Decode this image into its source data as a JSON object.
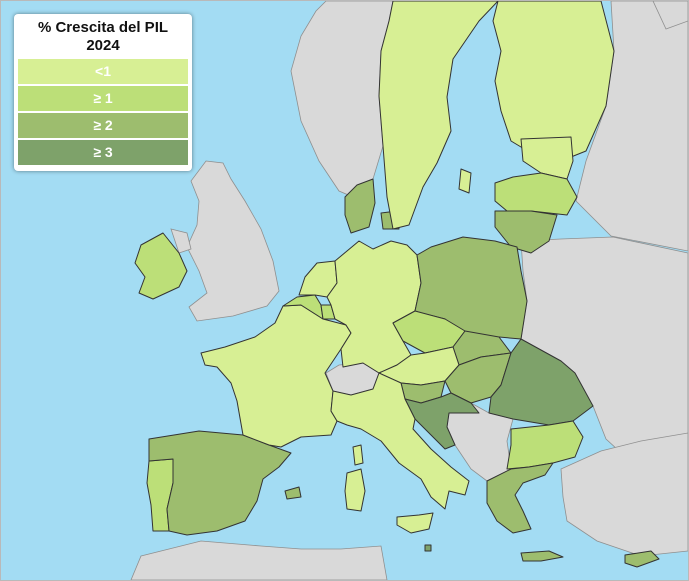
{
  "legend": {
    "title_line1": "% Crescita del PIL",
    "title_line2": "2024",
    "items": [
      {
        "label": "<1",
        "color": "#d7ef94"
      },
      {
        "label": "≥ 1",
        "color": "#bcdf78"
      },
      {
        "label": "≥ 2",
        "color": "#9dbd6e"
      },
      {
        "label": "≥ 3",
        "color": "#7ea26a"
      }
    ]
  },
  "colors": {
    "sea": "#a3dcf3",
    "non_eu_land": "#d9d9d9"
  },
  "regions": [
    {
      "country": "Portugal",
      "class": "≥ 1"
    },
    {
      "country": "Spain",
      "class": "≥ 2"
    },
    {
      "country": "France",
      "class": "<1"
    },
    {
      "country": "Ireland",
      "class": "≥ 1"
    },
    {
      "country": "Belgium",
      "class": "≥ 1"
    },
    {
      "country": "Netherlands",
      "class": "<1"
    },
    {
      "country": "Luxembourg",
      "class": "≥ 1"
    },
    {
      "country": "Germany",
      "class": "<1"
    },
    {
      "country": "Denmark",
      "class": "≥ 2"
    },
    {
      "country": "Sweden",
      "class": "<1"
    },
    {
      "country": "Finland",
      "class": "<1"
    },
    {
      "country": "Estonia",
      "class": "<1"
    },
    {
      "country": "Latvia",
      "class": "≥ 1"
    },
    {
      "country": "Lithuania",
      "class": "≥ 2"
    },
    {
      "country": "Poland",
      "class": "≥ 2"
    },
    {
      "country": "Czechia",
      "class": "≥ 1"
    },
    {
      "country": "Slovakia",
      "class": "≥ 2"
    },
    {
      "country": "Austria",
      "class": "<1"
    },
    {
      "country": "Hungary",
      "class": "≥ 2"
    },
    {
      "country": "Slovenia",
      "class": "≥ 2"
    },
    {
      "country": "Croatia",
      "class": "≥ 3"
    },
    {
      "country": "Romania",
      "class": "≥ 3"
    },
    {
      "country": "Bulgaria",
      "class": "≥ 1"
    },
    {
      "country": "Greece",
      "class": "≥ 2"
    },
    {
      "country": "Italy",
      "class": "<1"
    },
    {
      "country": "Malta",
      "class": "≥ 3"
    },
    {
      "country": "Cyprus",
      "class": "≥ 2"
    }
  ]
}
